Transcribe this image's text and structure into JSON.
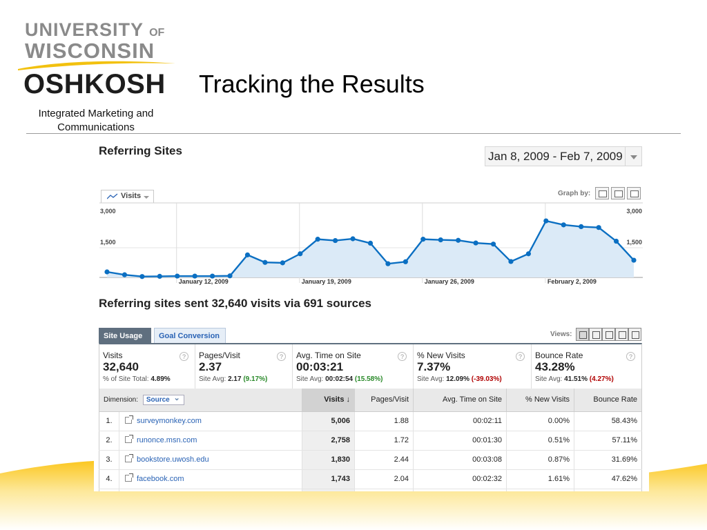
{
  "slide": {
    "title": "Tracking the Results",
    "logo": {
      "line1": "UNIVERSITY",
      "line1_of": "OF",
      "line2": "WISCONSIN",
      "line3": "OSHKOSH"
    },
    "department": "Integrated Marketing and Communications",
    "colors": {
      "wave": "#fbd23a",
      "logo_swoosh": "#f2c10f",
      "rule": "#9a9a9a"
    }
  },
  "report": {
    "title": "Referring Sites",
    "date_range": "Jan 8, 2009 - Feb 7, 2009",
    "metric_selector": "Visits",
    "graph_by_label": "Graph by:",
    "summary": "Referring sites sent 32,640 visits via 691 sources",
    "tabs": [
      "Site Usage",
      "Goal Conversion"
    ],
    "views_label": "Views:",
    "colors": {
      "line": "#0b6fc2",
      "fill": "#dbeaf7",
      "active_tab": "#5f6f7f",
      "positive": "#2a8a2a",
      "negative": "#b00000"
    }
  },
  "chart_data": {
    "type": "area",
    "x": [
      "Jan 8",
      "Jan 9",
      "Jan 10",
      "Jan 11",
      "Jan 12",
      "Jan 13",
      "Jan 14",
      "Jan 15",
      "Jan 16",
      "Jan 17",
      "Jan 18",
      "Jan 19",
      "Jan 20",
      "Jan 21",
      "Jan 22",
      "Jan 23",
      "Jan 24",
      "Jan 25",
      "Jan 26",
      "Jan 27",
      "Jan 28",
      "Jan 29",
      "Jan 30",
      "Jan 31",
      "Feb 1",
      "Feb 2",
      "Feb 3",
      "Feb 4",
      "Feb 5",
      "Feb 6",
      "Feb 7"
    ],
    "series": [
      {
        "values": [
          250,
          120,
          40,
          50,
          60,
          60,
          60,
          70,
          1020,
          680,
          660,
          1070,
          1730,
          1670,
          1750,
          1550,
          620,
          710,
          1730,
          1700,
          1680,
          1560,
          1510,
          720,
          1070,
          2560,
          2380,
          2300,
          2260,
          1640,
          780
        ]
      }
    ],
    "ylim": [
      0,
      3000
    ],
    "yticks": [
      "3,000",
      "1,500"
    ],
    "xtick_labels": [
      "January 12, 2009",
      "January 19, 2009",
      "January 26, 2009",
      "February 2, 2009"
    ],
    "grid": true
  },
  "scorecards": [
    {
      "label": "Visits",
      "value": "32,640",
      "sub_label": "% of Site Total:",
      "sub_value": "4.89%",
      "sub_delta": ""
    },
    {
      "label": "Pages/Visit",
      "value": "2.37",
      "sub_label": "Site Avg:",
      "sub_value": "2.17",
      "sub_delta": "(9.17%)"
    },
    {
      "label": "Avg. Time on Site",
      "value": "00:03:21",
      "sub_label": "Site Avg:",
      "sub_value": "00:02:54",
      "sub_delta": "(15.58%)"
    },
    {
      "label": "% New Visits",
      "value": "7.37%",
      "sub_label": "Site Avg:",
      "sub_value": "12.09%",
      "sub_delta": "(-39.03%)"
    },
    {
      "label": "Bounce Rate",
      "value": "43.28%",
      "sub_label": "Site Avg:",
      "sub_value": "41.51%",
      "sub_delta": "(4.27%)"
    }
  ],
  "help_glyph": "?",
  "table": {
    "dimension_label": "Dimension:",
    "dimension_value": "Source",
    "columns": [
      "Visits ↓",
      "Pages/Visit",
      "Avg. Time on Site",
      "% New Visits",
      "Bounce Rate"
    ],
    "rows": [
      {
        "rank": "1.",
        "source": "surveymonkey.com",
        "visits": "5,006",
        "pages_visit": "1.88",
        "avg_time": "00:02:11",
        "new_visits": "0.00%",
        "bounce": "58.43%"
      },
      {
        "rank": "2.",
        "source": "runonce.msn.com",
        "visits": "2,758",
        "pages_visit": "1.72",
        "avg_time": "00:01:30",
        "new_visits": "0.51%",
        "bounce": "57.11%"
      },
      {
        "rank": "3.",
        "source": "bookstore.uwosh.edu",
        "visits": "1,830",
        "pages_visit": "2.44",
        "avg_time": "00:03:08",
        "new_visits": "0.87%",
        "bounce": "31.69%"
      },
      {
        "rank": "4.",
        "source": "facebook.com",
        "visits": "1,743",
        "pages_visit": "2.04",
        "avg_time": "00:02:32",
        "new_visits": "1.61%",
        "bounce": "47.62%"
      }
    ]
  }
}
